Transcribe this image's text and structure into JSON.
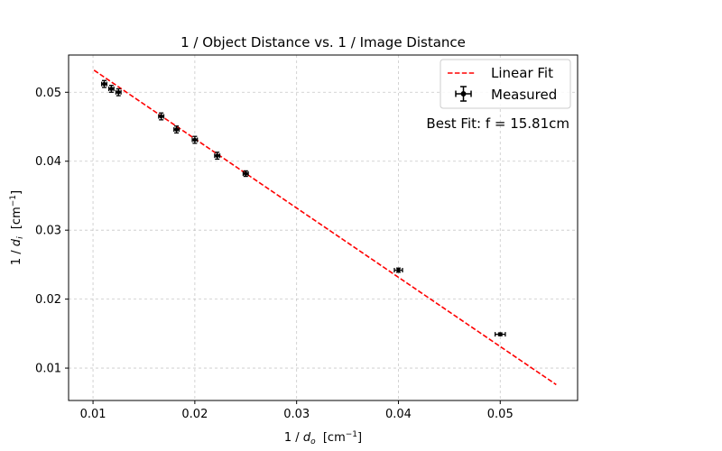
{
  "chart_data": {
    "type": "scatter",
    "title": "1 / Object Distance vs. 1 / Image Distance",
    "xlabel": {
      "prefix": "1 / ",
      "var": "d",
      "sub": "o",
      "unit_open": "  [cm",
      "unit_sup": "−1",
      "unit_close": "]"
    },
    "ylabel": {
      "prefix": "1 / ",
      "var": "d",
      "sub": "i",
      "unit_open": "  [cm",
      "unit_sup": "−1",
      "unit_close": "]"
    },
    "xlim": [
      0.0076,
      0.0576
    ],
    "ylim": [
      0.0053,
      0.0554
    ],
    "x_ticks": [
      0.01,
      0.02,
      0.03,
      0.04,
      0.05
    ],
    "x_tick_labels": [
      "0.01",
      "0.02",
      "0.03",
      "0.04",
      "0.05"
    ],
    "y_ticks": [
      0.01,
      0.02,
      0.03,
      0.04,
      0.05
    ],
    "y_tick_labels": [
      "0.01",
      "0.02",
      "0.03",
      "0.04",
      "0.05"
    ],
    "grid": true,
    "legend_position": "top-right",
    "series": [
      {
        "name": "Measured",
        "kind": "errorbar",
        "color": "#000000",
        "points": [
          {
            "x": 0.0111,
            "y": 0.0512,
            "xerr": 0.00025,
            "yerr": 0.0005
          },
          {
            "x": 0.0118,
            "y": 0.0505,
            "xerr": 0.00025,
            "yerr": 0.0005
          },
          {
            "x": 0.0125,
            "y": 0.05,
            "xerr": 0.00025,
            "yerr": 0.0005
          },
          {
            "x": 0.0167,
            "y": 0.0465,
            "xerr": 0.00025,
            "yerr": 0.0005
          },
          {
            "x": 0.0182,
            "y": 0.0446,
            "xerr": 0.00025,
            "yerr": 0.0005
          },
          {
            "x": 0.02,
            "y": 0.0431,
            "xerr": 0.00025,
            "yerr": 0.0005
          },
          {
            "x": 0.0222,
            "y": 0.0408,
            "xerr": 0.00025,
            "yerr": 0.0005
          },
          {
            "x": 0.025,
            "y": 0.0382,
            "xerr": 0.00025,
            "yerr": 0.0004
          },
          {
            "x": 0.04,
            "y": 0.0242,
            "xerr": 0.0004,
            "yerr": 0.0003
          },
          {
            "x": 0.05,
            "y": 0.0149,
            "xerr": 0.0005,
            "yerr": 0.0002
          }
        ]
      },
      {
        "name": "Linear Fit",
        "kind": "line",
        "color": "#ff0000",
        "dash": "dashed",
        "x": [
          0.0101,
          0.0555
        ],
        "y": [
          0.0532,
          0.0076
        ]
      }
    ],
    "legend_order": [
      "Linear Fit",
      "Measured"
    ],
    "annotation": "Best Fit: f = 15.81cm"
  }
}
